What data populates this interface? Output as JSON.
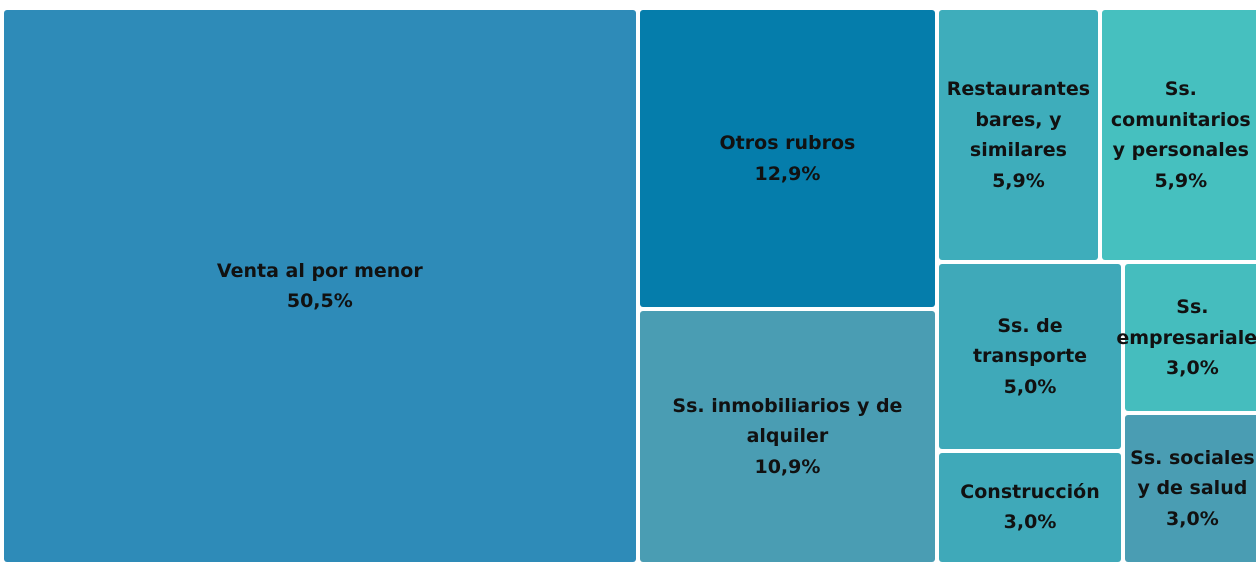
{
  "chart_data": {
    "type": "treemap",
    "categories": [
      "Venta al por menor",
      "Otros rubros",
      "Ss. inmobiliarios y de alquiler",
      "Restaurantes bares, y similares",
      "Ss. comunitarios y personales",
      "Ss. de transporte",
      "Construcción",
      "Ss. empresariales",
      "Ss. sociales y de salud"
    ],
    "values": [
      50.5,
      12.9,
      10.9,
      5.9,
      5.9,
      5.0,
      3.0,
      3.0,
      3.0
    ],
    "value_labels": [
      "50,5%",
      "12,9%",
      "10,9%",
      "5,9%",
      "5,9%",
      "5,0%",
      "3,0%",
      "3,0%",
      "3,0%"
    ],
    "colors": [
      "#2e8bb8",
      "#057dab",
      "#4a9db3",
      "#3eadbb",
      "#46c0bf",
      "#3fa9b9",
      "#3fa9b9",
      "#45bdbe",
      "#4a9db3"
    ]
  }
}
